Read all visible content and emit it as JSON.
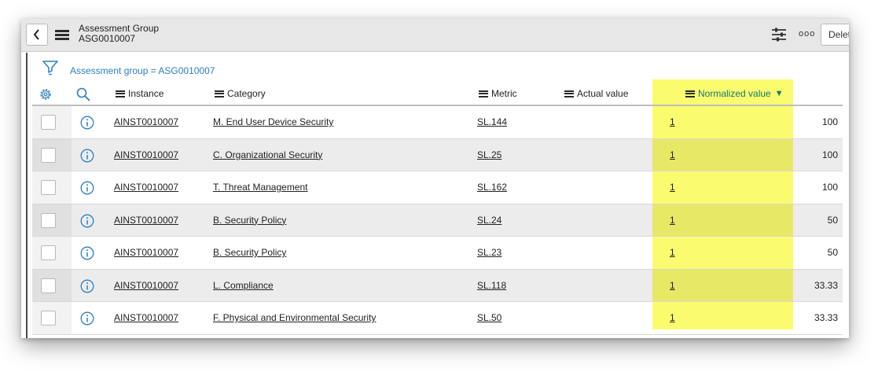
{
  "header": {
    "title": "Assessment Group",
    "subtitle": "ASG0010007",
    "more_label": "ooo",
    "delete_label": "Delete"
  },
  "filter": {
    "breadcrumb": "Assessment group = ASG0010007"
  },
  "columns": {
    "instance": "Instance",
    "category": "Category",
    "metric": "Metric",
    "actual_value": "Actual value",
    "normalized_value": "Normalized value"
  },
  "sorted_column": "normalized_value",
  "sort_direction": "descending",
  "highlight_color": "#f8f74a",
  "link_color": "#2b7ec2",
  "rows": [
    {
      "instance": "AINST0010007",
      "category": "M. End User Device Security",
      "metric": "SL.144",
      "normalized": "1",
      "score": "100"
    },
    {
      "instance": "AINST0010007",
      "category": "C. Organizational Security",
      "metric": "SL.25",
      "normalized": "1",
      "score": "100"
    },
    {
      "instance": "AINST0010007",
      "category": "T. Threat Management",
      "metric": "SL.162",
      "normalized": "1",
      "score": "100"
    },
    {
      "instance": "AINST0010007",
      "category": "B. Security Policy",
      "metric": "SL.24",
      "normalized": "1",
      "score": "50"
    },
    {
      "instance": "AINST0010007",
      "category": "B. Security Policy",
      "metric": "SL.23",
      "normalized": "1",
      "score": "50"
    },
    {
      "instance": "AINST0010007",
      "category": "L. Compliance",
      "metric": "SL.118",
      "normalized": "1",
      "score": "33.33"
    },
    {
      "instance": "AINST0010007",
      "category": "F. Physical and Environmental Security",
      "metric": "SL.50",
      "normalized": "1",
      "score": "33.33"
    }
  ]
}
